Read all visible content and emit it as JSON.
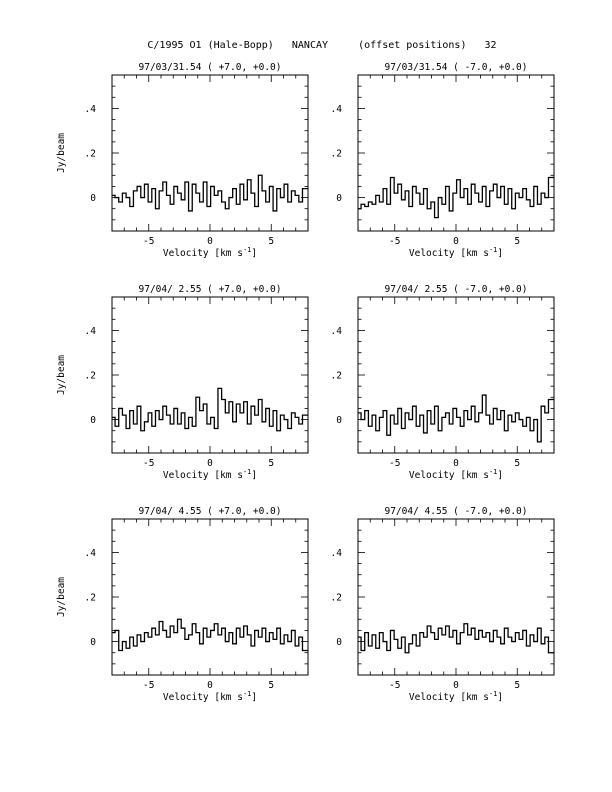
{
  "page_title": "C/1995 O1 (Hale-Bopp)   NANCAY     (offset positions)   32",
  "chart_data": [
    {
      "type": "line",
      "title": "97/03/31.54  ( +7.0, +0.0)",
      "xlabel": "Velocity [km s",
      "xlabel_superscript": "-1",
      "ylabel": "Jy/beam",
      "xlim": [
        -8,
        8
      ],
      "ylim": [
        -0.15,
        0.55
      ],
      "x_ticks": [
        -5,
        0,
        5
      ],
      "y_ticks": [
        0,
        0.2,
        0.4
      ],
      "series": [
        {
          "x": [
            -7.9,
            -7.6,
            -7.3,
            -7.0,
            -6.7,
            -6.4,
            -6.1,
            -5.8,
            -5.5,
            -5.2,
            -4.9,
            -4.6,
            -4.3,
            -4.0,
            -3.7,
            -3.4,
            -3.1,
            -2.8,
            -2.5,
            -2.2,
            -1.9,
            -1.6,
            -1.3,
            -1.0,
            -0.7,
            -0.4,
            -0.1,
            0.2,
            0.5,
            0.8,
            1.1,
            1.4,
            1.7,
            2.0,
            2.3,
            2.6,
            2.9,
            3.2,
            3.5,
            3.8,
            4.1,
            4.4,
            4.7,
            5.0,
            5.3,
            5.6,
            5.9,
            6.2,
            6.5,
            6.8,
            7.1,
            7.4,
            7.7
          ],
          "y": [
            0.01,
            0.0,
            -0.02,
            0.02,
            0.0,
            -0.04,
            0.03,
            0.05,
            0.0,
            0.06,
            -0.02,
            0.04,
            -0.05,
            0.03,
            0.07,
            0.01,
            -0.03,
            0.05,
            0.02,
            -0.01,
            0.07,
            -0.06,
            0.06,
            0.02,
            -0.02,
            0.07,
            -0.04,
            0.05,
            0.01,
            0.03,
            -0.02,
            -0.05,
            0.0,
            0.04,
            -0.03,
            0.06,
            -0.01,
            0.08,
            0.02,
            -0.04,
            0.1,
            0.03,
            -0.02,
            0.05,
            -0.06,
            0.04,
            0.0,
            0.06,
            -0.02,
            0.03,
            0.01,
            -0.02,
            0.04
          ]
        }
      ]
    },
    {
      "type": "line",
      "title": "97/03/31.54  ( -7.0, +0.0)",
      "xlabel": "Velocity [km s",
      "xlabel_superscript": "-1",
      "ylabel": "",
      "xlim": [
        -8,
        8
      ],
      "ylim": [
        -0.15,
        0.55
      ],
      "x_ticks": [
        -5,
        0,
        5
      ],
      "y_ticks": [
        0,
        0.2,
        0.4
      ],
      "series": [
        {
          "x": [
            -7.9,
            -7.6,
            -7.3,
            -7.0,
            -6.7,
            -6.4,
            -6.1,
            -5.8,
            -5.5,
            -5.2,
            -4.9,
            -4.6,
            -4.3,
            -4.0,
            -3.7,
            -3.4,
            -3.1,
            -2.8,
            -2.5,
            -2.2,
            -1.9,
            -1.6,
            -1.3,
            -1.0,
            -0.7,
            -0.4,
            -0.1,
            0.2,
            0.5,
            0.8,
            1.1,
            1.4,
            1.7,
            2.0,
            2.3,
            2.6,
            2.9,
            3.2,
            3.5,
            3.8,
            4.1,
            4.4,
            4.7,
            5.0,
            5.3,
            5.6,
            5.9,
            6.2,
            6.5,
            6.8,
            7.1,
            7.4,
            7.7
          ],
          "y": [
            -0.05,
            -0.03,
            -0.04,
            -0.02,
            -0.03,
            0.01,
            -0.02,
            0.04,
            -0.03,
            0.09,
            0.02,
            0.06,
            -0.01,
            0.03,
            -0.04,
            0.05,
            0.02,
            -0.03,
            0.04,
            -0.05,
            -0.02,
            -0.09,
            0.0,
            -0.03,
            0.05,
            -0.06,
            0.02,
            0.08,
            0.0,
            0.04,
            -0.03,
            0.06,
            0.02,
            -0.02,
            0.05,
            -0.04,
            0.03,
            0.06,
            0.0,
            0.05,
            -0.03,
            0.04,
            -0.05,
            0.02,
            0.0,
            0.04,
            -0.01,
            -0.04,
            0.05,
            -0.03,
            0.02,
            0.0,
            0.09
          ]
        }
      ]
    },
    {
      "type": "line",
      "title": "97/04/ 2.55  ( +7.0, +0.0)",
      "xlabel": "Velocity [km s",
      "xlabel_superscript": "-1",
      "ylabel": "Jy/beam",
      "xlim": [
        -8,
        8
      ],
      "ylim": [
        -0.15,
        0.55
      ],
      "x_ticks": [
        -5,
        0,
        5
      ],
      "y_ticks": [
        0,
        0.2,
        0.4
      ],
      "series": [
        {
          "x": [
            -7.9,
            -7.6,
            -7.3,
            -7.0,
            -6.7,
            -6.4,
            -6.1,
            -5.8,
            -5.5,
            -5.2,
            -4.9,
            -4.6,
            -4.3,
            -4.0,
            -3.7,
            -3.4,
            -3.1,
            -2.8,
            -2.5,
            -2.2,
            -1.9,
            -1.6,
            -1.3,
            -1.0,
            -0.7,
            -0.4,
            -0.1,
            0.2,
            0.5,
            0.8,
            1.1,
            1.4,
            1.7,
            2.0,
            2.3,
            2.6,
            2.9,
            3.2,
            3.5,
            3.8,
            4.1,
            4.4,
            4.7,
            5.0,
            5.3,
            5.6,
            5.9,
            6.2,
            6.5,
            6.8,
            7.1,
            7.4,
            7.7
          ],
          "y": [
            0.01,
            -0.03,
            0.05,
            0.02,
            -0.04,
            0.04,
            -0.02,
            0.06,
            -0.05,
            -0.01,
            0.03,
            -0.03,
            0.04,
            0.0,
            0.06,
            0.02,
            -0.02,
            0.05,
            -0.02,
            0.03,
            -0.04,
            0.01,
            -0.03,
            0.1,
            0.04,
            0.07,
            -0.02,
            0.01,
            -0.04,
            0.14,
            0.09,
            0.03,
            0.08,
            -0.01,
            0.07,
            0.03,
            0.08,
            -0.02,
            0.06,
            0.02,
            0.09,
            -0.01,
            0.05,
            -0.03,
            0.04,
            -0.05,
            0.02,
            0.0,
            -0.04,
            0.03,
            0.01,
            -0.02,
            0.02
          ]
        }
      ]
    },
    {
      "type": "line",
      "title": "97/04/ 2.55  ( -7.0, +0.0)",
      "xlabel": "Velocity [km s",
      "xlabel_superscript": "-1",
      "ylabel": "",
      "xlim": [
        -8,
        8
      ],
      "ylim": [
        -0.15,
        0.55
      ],
      "x_ticks": [
        -5,
        0,
        5
      ],
      "y_ticks": [
        0,
        0.2,
        0.4
      ],
      "series": [
        {
          "x": [
            -7.9,
            -7.6,
            -7.3,
            -7.0,
            -6.7,
            -6.4,
            -6.1,
            -5.8,
            -5.5,
            -5.2,
            -4.9,
            -4.6,
            -4.3,
            -4.0,
            -3.7,
            -3.4,
            -3.1,
            -2.8,
            -2.5,
            -2.2,
            -1.9,
            -1.6,
            -1.3,
            -1.0,
            -0.7,
            -0.4,
            -0.1,
            0.2,
            0.5,
            0.8,
            1.1,
            1.4,
            1.7,
            2.0,
            2.3,
            2.6,
            2.9,
            3.2,
            3.5,
            3.8,
            4.1,
            4.4,
            4.7,
            5.0,
            5.3,
            5.6,
            5.9,
            6.2,
            6.5,
            6.8,
            7.1,
            7.4,
            7.7
          ],
          "y": [
            0.03,
            0.0,
            0.04,
            -0.03,
            0.02,
            -0.05,
            0.01,
            0.04,
            -0.07,
            0.02,
            -0.02,
            0.05,
            -0.04,
            0.03,
            0.0,
            0.06,
            -0.03,
            0.02,
            -0.06,
            0.04,
            -0.02,
            0.06,
            -0.05,
            0.01,
            0.03,
            -0.02,
            0.05,
            0.01,
            -0.03,
            0.04,
            0.0,
            0.06,
            -0.01,
            0.03,
            0.11,
            0.02,
            -0.02,
            0.05,
            0.0,
            0.04,
            -0.05,
            0.02,
            -0.01,
            0.03,
            0.0,
            -0.03,
            0.01,
            -0.05,
            0.0,
            -0.1,
            0.06,
            0.03,
            0.09
          ]
        }
      ]
    },
    {
      "type": "line",
      "title": "97/04/ 4.55  ( +7.0, +0.0)",
      "xlabel": "Velocity [km s",
      "xlabel_superscript": "-1",
      "ylabel": "Jy/beam",
      "xlim": [
        -8,
        8
      ],
      "ylim": [
        -0.15,
        0.55
      ],
      "x_ticks": [
        -5,
        0,
        5
      ],
      "y_ticks": [
        0,
        0.2,
        0.4
      ],
      "series": [
        {
          "x": [
            -7.9,
            -7.6,
            -7.3,
            -7.0,
            -6.7,
            -6.4,
            -6.1,
            -5.8,
            -5.5,
            -5.2,
            -4.9,
            -4.6,
            -4.3,
            -4.0,
            -3.7,
            -3.4,
            -3.1,
            -2.8,
            -2.5,
            -2.2,
            -1.9,
            -1.6,
            -1.3,
            -1.0,
            -0.7,
            -0.4,
            -0.1,
            0.2,
            0.5,
            0.8,
            1.1,
            1.4,
            1.7,
            2.0,
            2.3,
            2.6,
            2.9,
            3.2,
            3.5,
            3.8,
            4.1,
            4.4,
            4.7,
            5.0,
            5.3,
            5.6,
            5.9,
            6.2,
            6.5,
            6.8,
            7.1,
            7.4,
            7.7
          ],
          "y": [
            0.04,
            0.05,
            -0.04,
            0.0,
            -0.03,
            0.02,
            -0.02,
            0.03,
            0.0,
            0.04,
            0.02,
            0.06,
            0.03,
            0.09,
            0.05,
            0.02,
            0.07,
            0.04,
            0.1,
            0.06,
            0.01,
            0.03,
            0.08,
            0.04,
            -0.01,
            0.06,
            0.02,
            0.05,
            0.08,
            0.03,
            0.06,
            0.0,
            0.04,
            -0.01,
            0.06,
            0.02,
            0.07,
            0.03,
            -0.02,
            0.05,
            0.02,
            0.06,
            0.0,
            0.04,
            0.01,
            0.06,
            -0.01,
            0.03,
            0.0,
            0.05,
            -0.02,
            0.02,
            -0.04
          ]
        }
      ]
    },
    {
      "type": "line",
      "title": "97/04/ 4.55  ( -7.0, +0.0)",
      "xlabel": "Velocity [km s",
      "xlabel_superscript": "-1",
      "ylabel": "",
      "xlim": [
        -8,
        8
      ],
      "ylim": [
        -0.15,
        0.55
      ],
      "x_ticks": [
        -5,
        0,
        5
      ],
      "y_ticks": [
        0,
        0.2,
        0.4
      ],
      "series": [
        {
          "x": [
            -7.9,
            -7.6,
            -7.3,
            -7.0,
            -6.7,
            -6.4,
            -6.1,
            -5.8,
            -5.5,
            -5.2,
            -4.9,
            -4.6,
            -4.3,
            -4.0,
            -3.7,
            -3.4,
            -3.1,
            -2.8,
            -2.5,
            -2.2,
            -1.9,
            -1.6,
            -1.3,
            -1.0,
            -0.7,
            -0.4,
            -0.1,
            0.2,
            0.5,
            0.8,
            1.1,
            1.4,
            1.7,
            2.0,
            2.3,
            2.6,
            2.9,
            3.2,
            3.5,
            3.8,
            4.1,
            4.4,
            4.7,
            5.0,
            5.3,
            5.6,
            5.9,
            6.2,
            6.5,
            6.8,
            7.1,
            7.4,
            7.7
          ],
          "y": [
            0.02,
            -0.04,
            0.04,
            -0.02,
            0.03,
            -0.03,
            0.04,
            0.0,
            -0.04,
            0.05,
            0.01,
            -0.03,
            0.02,
            -0.05,
            -0.01,
            0.03,
            -0.02,
            0.04,
            0.02,
            0.07,
            0.04,
            0.01,
            0.06,
            0.03,
            0.07,
            0.02,
            0.05,
            -0.01,
            0.04,
            0.08,
            0.03,
            0.06,
            0.01,
            0.05,
            0.02,
            0.04,
            0.0,
            0.05,
            0.02,
            -0.01,
            0.06,
            0.02,
            0.0,
            0.04,
            0.01,
            0.05,
            -0.02,
            0.03,
            0.0,
            0.06,
            -0.01,
            0.02,
            -0.05
          ]
        }
      ]
    }
  ]
}
